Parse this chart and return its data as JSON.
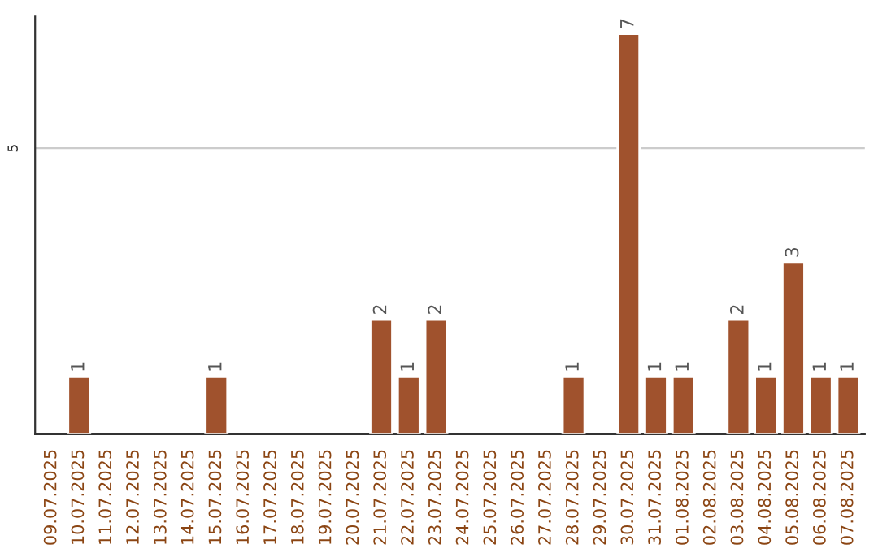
{
  "chart_data": {
    "type": "bar",
    "categories": [
      "09.07.2025",
      "10.07.2025",
      "11.07.2025",
      "12.07.2025",
      "13.07.2025",
      "14.07.2025",
      "15.07.2025",
      "16.07.2025",
      "17.07.2025",
      "18.07.2025",
      "19.07.2025",
      "20.07.2025",
      "21.07.2025",
      "22.07.2025",
      "23.07.2025",
      "24.07.2025",
      "25.07.2025",
      "26.07.2025",
      "27.07.2025",
      "28.07.2025",
      "29.07.2025",
      "30.07.2025",
      "31.07.2025",
      "01.08.2025",
      "02.08.2025",
      "03.08.2025",
      "04.08.2025",
      "05.08.2025",
      "06.08.2025",
      "07.08.2025"
    ],
    "values": [
      null,
      1,
      null,
      null,
      null,
      null,
      1,
      null,
      null,
      null,
      null,
      null,
      2,
      1,
      2,
      null,
      null,
      null,
      null,
      1,
      null,
      7,
      1,
      1,
      null,
      2,
      1,
      3,
      1,
      1
    ],
    "value_labels": [
      null,
      "1",
      null,
      null,
      null,
      null,
      "1",
      null,
      null,
      null,
      null,
      null,
      "2",
      "1",
      "2",
      null,
      null,
      null,
      null,
      "1",
      null,
      "7",
      "1",
      "1",
      null,
      "2",
      "1",
      "3",
      "1",
      "1"
    ],
    "color": "#a0522d",
    "ylim": [
      0,
      7.3
    ],
    "yticks": [
      5
    ],
    "grid": "y"
  }
}
